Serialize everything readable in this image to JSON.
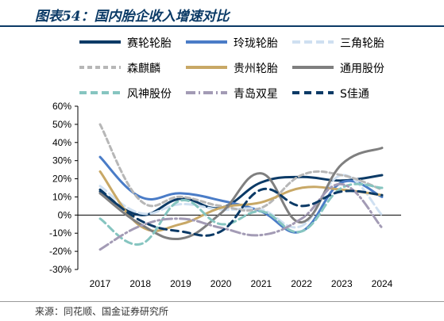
{
  "header": {
    "title": "图表54：国内胎企收入增速对比"
  },
  "footer": {
    "source": "来源：同花顺、国金证券研究所"
  },
  "chart_data": {
    "type": "line",
    "x": [
      "2017",
      "2018",
      "2019",
      "2020",
      "2021",
      "2022",
      "2023",
      "2024"
    ],
    "ylim": [
      -0.3,
      0.6
    ],
    "yticks": [
      "60%",
      "50%",
      "40%",
      "30%",
      "20%",
      "10%",
      "0%",
      "-10%",
      "-20%",
      "-30%"
    ],
    "legend_position": "top",
    "series": [
      {
        "name": "赛轮轮胎",
        "color": "#0b3a66",
        "dash": "",
        "values": [
          0.13,
          0.0,
          0.09,
          0.04,
          0.18,
          0.21,
          0.19,
          0.22
        ]
      },
      {
        "name": "玲珑轮胎",
        "color": "#4a7cc7",
        "dash": "",
        "values": [
          0.32,
          0.1,
          0.12,
          0.08,
          0.02,
          -0.09,
          0.18,
          0.1
        ]
      },
      {
        "name": "三角轮胎",
        "color": "#cfe0f1",
        "dash": "10,5",
        "values": [
          0.16,
          0.01,
          0.06,
          0.03,
          0.03,
          -0.06,
          0.22,
          0.0
        ]
      },
      {
        "name": "森麒麟",
        "color": "#b7b7b7",
        "dash": "6,4",
        "values": [
          0.5,
          0.08,
          0.1,
          0.05,
          0.04,
          0.22,
          0.22,
          0.14
        ]
      },
      {
        "name": "贵州轮胎",
        "color": "#c8a866",
        "dash": "",
        "values": [
          0.24,
          -0.06,
          -0.05,
          0.04,
          0.07,
          0.15,
          0.14,
          0.11
        ]
      },
      {
        "name": "通用股份",
        "color": "#7f7f7f",
        "dash": "",
        "values": [
          0.12,
          -0.05,
          -0.13,
          0.01,
          0.23,
          -0.04,
          0.28,
          0.37
        ]
      },
      {
        "name": "风神股份",
        "color": "#86c5c0",
        "dash": "9,5",
        "values": [
          -0.02,
          -0.16,
          0.08,
          -0.05,
          0.02,
          -0.09,
          0.15,
          0.15
        ]
      },
      {
        "name": "青岛双星",
        "color": "#a39bb5",
        "dash": "12,4,2,4",
        "values": [
          -0.19,
          -0.06,
          -0.02,
          -0.07,
          -0.11,
          -0.02,
          0.17,
          -0.07
        ]
      },
      {
        "name": "S佳通",
        "color": "#0b3a66",
        "dash": "9,6",
        "values": [
          0.14,
          -0.03,
          -0.09,
          -0.09,
          0.14,
          0.05,
          0.13,
          0.11
        ]
      }
    ]
  }
}
